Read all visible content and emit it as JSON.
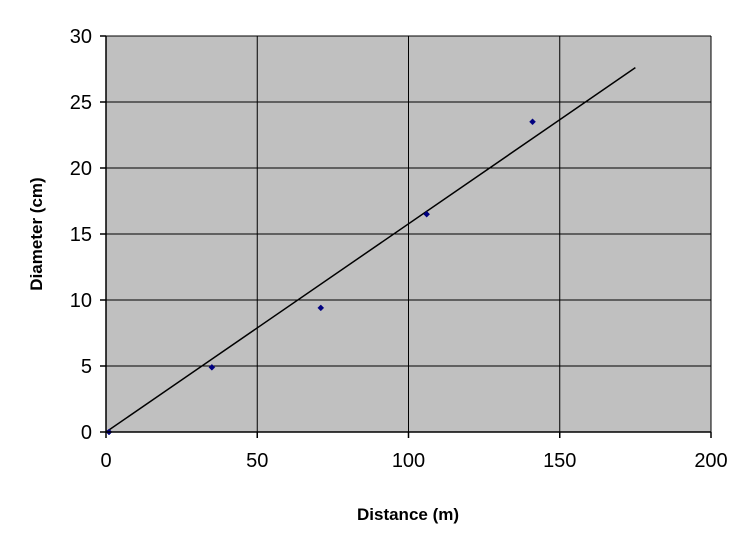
{
  "chart_data": {
    "type": "scatter",
    "title": "",
    "xlabel": "Distance (m)",
    "ylabel": "Diameter (cm)",
    "xlim": [
      0,
      200
    ],
    "ylim": [
      0,
      30
    ],
    "xticks": [
      0,
      50,
      100,
      150,
      200
    ],
    "yticks": [
      0,
      5,
      10,
      15,
      20,
      25,
      30
    ],
    "grid": true,
    "legend": "none",
    "plot_background": "#c0c0c0",
    "marker_color": "#000080",
    "series": [
      {
        "points": [
          {
            "x": 1,
            "y": 0
          },
          {
            "x": 35,
            "y": 4.9
          },
          {
            "x": 71,
            "y": 9.4
          },
          {
            "x": 106,
            "y": 16.5
          },
          {
            "x": 141,
            "y": 23.5
          }
        ]
      }
    ],
    "trendline": {
      "type": "linear",
      "color": "#000000",
      "start": {
        "x": 0,
        "y": 0
      },
      "end": {
        "x": 175,
        "y": 27.6
      }
    }
  }
}
